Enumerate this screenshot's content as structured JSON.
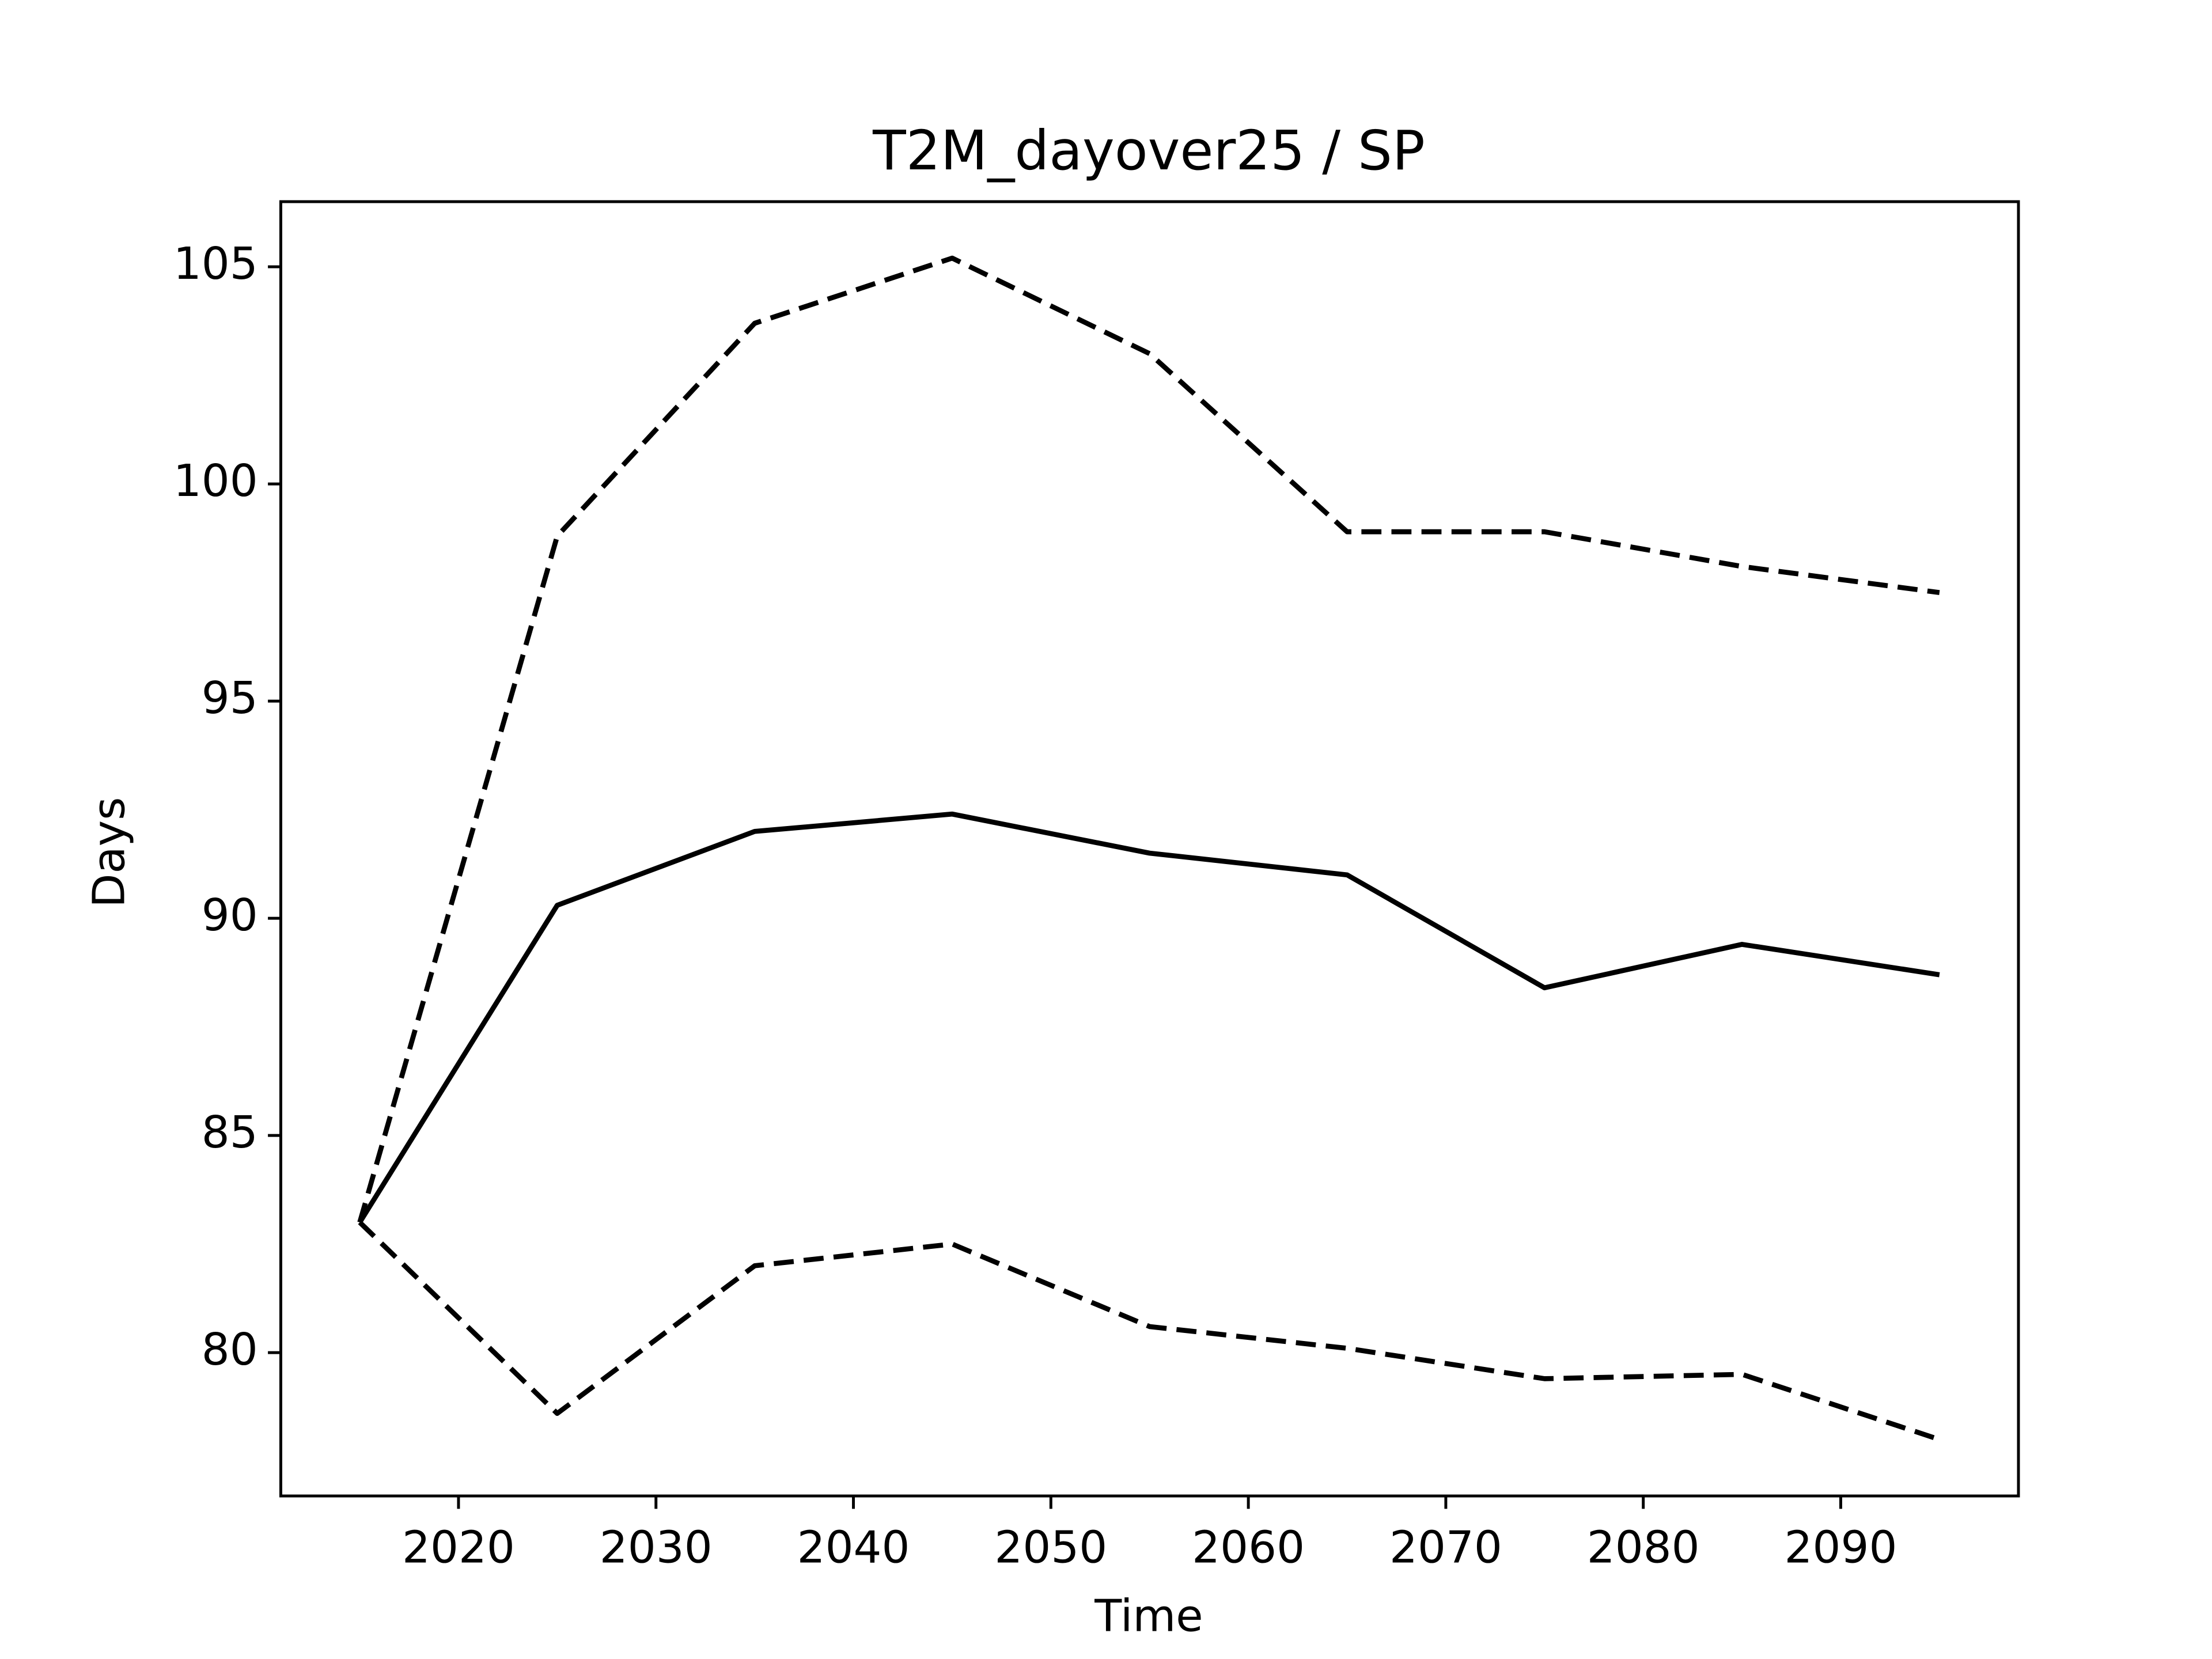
{
  "chart_data": {
    "type": "line",
    "title": "T2M_dayover25 / SP",
    "xlabel": "Time",
    "ylabel": "Days",
    "x": [
      2015,
      2025,
      2035,
      2045,
      2055,
      2065,
      2075,
      2085,
      2095
    ],
    "series": [
      {
        "color": "#000000",
        "dash": false,
        "values": [
          83.0,
          90.3,
          92.0,
          92.4,
          91.5,
          91.0,
          88.4,
          89.4,
          88.7
        ]
      },
      {
        "color": "#000000",
        "dash": true,
        "values": [
          83.0,
          98.8,
          103.7,
          105.2,
          103.0,
          98.9,
          98.9,
          98.1,
          97.5
        ]
      },
      {
        "color": "#000000",
        "dash": true,
        "values": [
          83.0,
          78.6,
          82.0,
          82.5,
          80.6,
          80.1,
          79.4,
          79.5,
          78.0
        ]
      }
    ],
    "xlim": [
      2011,
      2099
    ],
    "xticks": [
      2020,
      2030,
      2040,
      2050,
      2060,
      2070,
      2080,
      2090
    ],
    "ylim": [
      76.7,
      106.5
    ],
    "yticks": [
      80,
      85,
      90,
      95,
      100,
      105
    ],
    "grid": false
  }
}
